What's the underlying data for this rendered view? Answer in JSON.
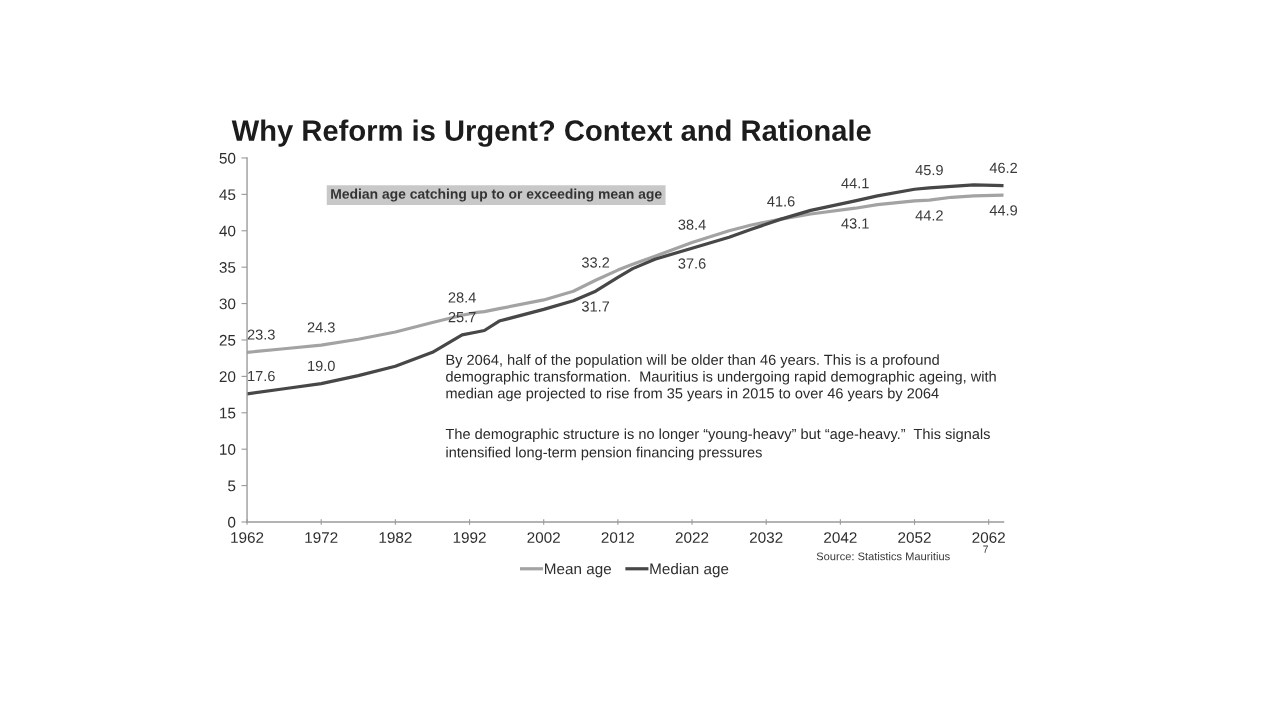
{
  "chart_data": {
    "type": "line",
    "title": "Why Reform is Urgent? Context and Rationale",
    "x": [
      1962,
      1967,
      1972,
      1977,
      1982,
      1987,
      1991,
      1993,
      1994,
      1996,
      2002,
      2006,
      2009,
      2012,
      2014,
      2017,
      2022,
      2027,
      2030,
      2034,
      2038,
      2044,
      2047,
      2052,
      2054,
      2057,
      2060,
      2064
    ],
    "series": [
      {
        "name": "Mean age",
        "color": "#a3a3a3",
        "values": [
          23.3,
          23.8,
          24.3,
          25.1,
          26.1,
          27.4,
          28.4,
          28.8,
          28.9,
          29.3,
          30.5,
          31.7,
          33.2,
          34.6,
          35.4,
          36.5,
          38.4,
          40.0,
          40.8,
          41.6,
          42.3,
          43.1,
          43.6,
          44.1,
          44.2,
          44.6,
          44.8,
          44.9
        ],
        "value_labels": [
          "23.3",
          null,
          "24.3",
          null,
          null,
          null,
          "28.4",
          null,
          null,
          null,
          null,
          null,
          "33.2",
          null,
          null,
          null,
          "38.4",
          null,
          null,
          null,
          null,
          "43.1",
          null,
          null,
          "44.2",
          null,
          null,
          "44.9"
        ]
      },
      {
        "name": "Median age",
        "color": "#474747",
        "values": [
          17.6,
          18.3,
          19.0,
          20.1,
          21.4,
          23.3,
          25.7,
          26.1,
          26.3,
          27.6,
          29.2,
          30.4,
          31.7,
          33.6,
          34.8,
          36.1,
          37.6,
          39.1,
          40.2,
          41.6,
          42.8,
          44.1,
          44.8,
          45.7,
          45.9,
          46.1,
          46.3,
          46.2
        ],
        "value_labels": [
          "17.6",
          null,
          "19.0",
          null,
          null,
          null,
          "25.7",
          null,
          null,
          null,
          null,
          null,
          "31.7",
          null,
          null,
          null,
          "37.6",
          null,
          null,
          "41.6",
          null,
          "44.1",
          null,
          null,
          "45.9",
          null,
          null,
          "46.2"
        ]
      }
    ],
    "xlim": [
      1962,
      2064
    ],
    "xticks": [
      1962,
      1972,
      1982,
      1992,
      2002,
      2012,
      2022,
      2032,
      2042,
      2052,
      2062
    ],
    "ylim": [
      0,
      50
    ],
    "yticks": [
      0,
      5,
      10,
      15,
      20,
      25,
      30,
      35,
      40,
      45,
      50
    ],
    "legend": "bottom",
    "annotations": [
      "Median age catching up to or exceeding mean age",
      "By 2064, half of the population will be older than 46 years. This is a profound\ndemographic transformation.  Mauritius is undergoing rapid demographic ageing, with\nmedian age projected to rise from 35 years in 2015 to over 46 years by 2064",
      "The demographic structure is no longer “young-heavy” but “age-heavy.”  This signals\nintensified long-term pension financing pressures",
      "Source: Statistics Mauritius",
      "7"
    ]
  }
}
